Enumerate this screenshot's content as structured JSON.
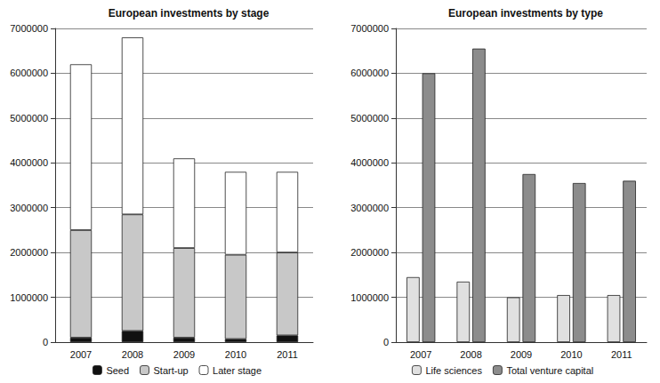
{
  "chart_data": [
    {
      "type": "bar",
      "title": "European investments by stage",
      "stacked": true,
      "grid": true,
      "legend": "bottom",
      "categories": [
        "2007",
        "2008",
        "2009",
        "2010",
        "2011"
      ],
      "series": [
        {
          "name": "Seed",
          "color": "#111111",
          "values": [
            100000,
            250000,
            100000,
            70000,
            150000
          ]
        },
        {
          "name": "Start-up",
          "color": "#c8c8c8",
          "values": [
            2400000,
            2600000,
            2000000,
            1880000,
            1850000
          ]
        },
        {
          "name": "Later stage",
          "color": "#ffffff",
          "values": [
            3700000,
            3950000,
            2000000,
            1850000,
            1800000
          ]
        }
      ],
      "ylim": [
        0,
        7000000
      ],
      "yticks": [
        0,
        1000000,
        2000000,
        3000000,
        4000000,
        5000000,
        6000000,
        7000000
      ]
    },
    {
      "type": "bar",
      "title": "European investments by type",
      "stacked": false,
      "grid": true,
      "legend": "bottom",
      "categories": [
        "2007",
        "2008",
        "2009",
        "2010",
        "2011"
      ],
      "series": [
        {
          "name": "Life sciences",
          "color": "#e0e0e0",
          "values": [
            1450000,
            1350000,
            1000000,
            1050000,
            1050000
          ]
        },
        {
          "name": "Total venture capital",
          "color": "#8c8c8c",
          "values": [
            6000000,
            6550000,
            3750000,
            3550000,
            3600000
          ]
        }
      ],
      "ylim": [
        0,
        7000000
      ],
      "yticks": [
        0,
        1000000,
        2000000,
        3000000,
        4000000,
        5000000,
        6000000,
        7000000
      ]
    }
  ]
}
